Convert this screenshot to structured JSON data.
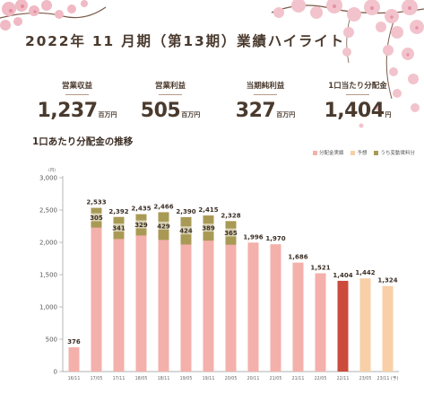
{
  "header": {
    "title": "2022年 11 月期（第13期）業績ハイライト"
  },
  "kpis": [
    {
      "label": "営業収益",
      "value": "1,237",
      "unit": "百万円"
    },
    {
      "label": "営業利益",
      "value": "505",
      "unit": "百万円"
    },
    {
      "label": "当期純利益",
      "value": "327",
      "unit": "百万円"
    },
    {
      "label": "1口当たり分配金",
      "value": "1,404",
      "unit": "円"
    }
  ],
  "section": {
    "subtitle": "1口あたり分配金の推移"
  },
  "colors": {
    "actual": "#f4b0ab",
    "forecast": "#f8cfa6",
    "variable": "#a89a55",
    "highlight": "#cc4b3c",
    "text": "#4a3a2e"
  },
  "chart_data": {
    "type": "bar",
    "title": "1口あたり分配金の推移",
    "ylabel_unit": "(円)",
    "ylim": [
      0,
      3000
    ],
    "yticks": [
      0,
      500,
      1000,
      1500,
      2000,
      2500,
      3000
    ],
    "ytick_labels": [
      "0",
      "500",
      "1,000",
      "1,500",
      "2,000",
      "2,500",
      "3,000"
    ],
    "legend": [
      {
        "name": "分配金実績",
        "color": "#f4b0ab"
      },
      {
        "name": "予想",
        "color": "#f8cfa6"
      },
      {
        "name": "うち変動賃料分",
        "color": "#a89a55"
      }
    ],
    "categories": [
      "16/11",
      "17/05",
      "17/11",
      "18/05",
      "18/11",
      "19/05",
      "19/11",
      "20/05",
      "20/11",
      "21/05",
      "21/11",
      "22/05",
      "22/11",
      "23/05",
      "23/11 (予)"
    ],
    "values": [
      376,
      2533,
      2392,
      2435,
      2466,
      2390,
      2415,
      2328,
      1996,
      1970,
      1686,
      1521,
      1404,
      1442,
      1324
    ],
    "value_labels": [
      "376",
      "2,533",
      "2,392",
      "2,435",
      "2,466",
      "2,390",
      "2,415",
      "2,328",
      "1,996",
      "1,970",
      "1,686",
      "1,521",
      "1,404",
      "1,442",
      "1,324"
    ],
    "variable_rent": [
      null,
      305,
      341,
      329,
      429,
      424,
      389,
      365,
      null,
      null,
      null,
      null,
      null,
      null,
      null
    ],
    "variable_rent_labels": [
      null,
      "305",
      "341",
      "329",
      "429",
      "424",
      "389",
      "365",
      null,
      null,
      null,
      null,
      null,
      null,
      null
    ],
    "bar_kinds": [
      "actual",
      "actual",
      "actual",
      "actual",
      "actual",
      "actual",
      "actual",
      "actual",
      "actual",
      "actual",
      "actual",
      "actual",
      "highlight",
      "forecast",
      "forecast"
    ]
  }
}
